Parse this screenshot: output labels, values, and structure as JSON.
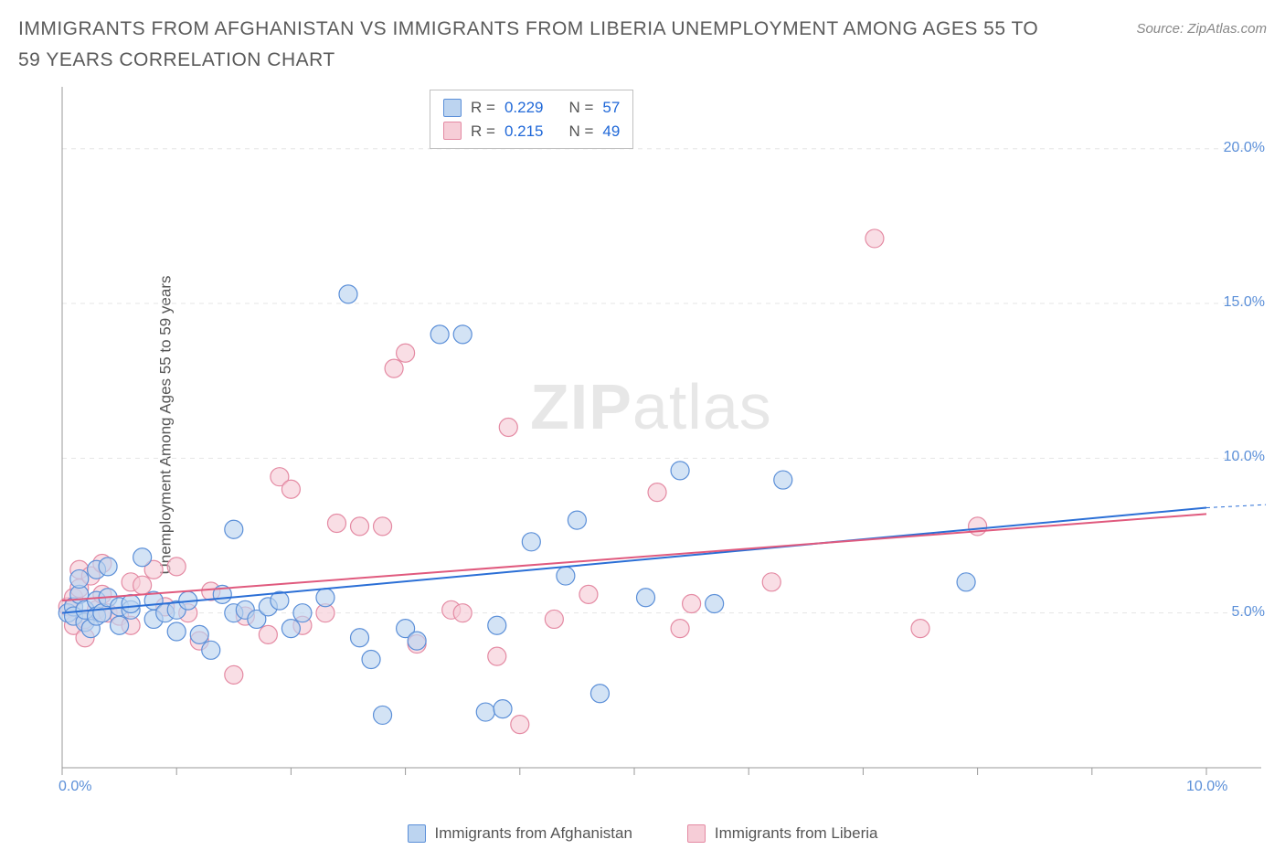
{
  "title": "IMMIGRANTS FROM AFGHANISTAN VS IMMIGRANTS FROM LIBERIA UNEMPLOYMENT AMONG AGES 55 TO 59 YEARS CORRELATION CHART",
  "source": "Source: ZipAtlas.com",
  "y_axis_label": "Unemployment Among Ages 55 to 59 years",
  "watermark_a": "ZIP",
  "watermark_b": "atlas",
  "chart": {
    "type": "scatter",
    "xlim": [
      0,
      10
    ],
    "ylim": [
      0,
      22
    ],
    "x_ticks": [
      0,
      1,
      2,
      3,
      4,
      5,
      6,
      7,
      8,
      9,
      10
    ],
    "x_tick_labels": {
      "0": "0.0%",
      "10": "10.0%"
    },
    "y_ticks": [
      5,
      10,
      15,
      20
    ],
    "y_tick_labels": {
      "5": "5.0%",
      "10": "10.0%",
      "15": "15.0%",
      "20": "20.0%"
    },
    "grid_color": "#e5e5e5",
    "axis_color": "#999999",
    "background": "#ffffff",
    "marker_radius": 10,
    "marker_stroke_width": 1.2,
    "line_width": 2,
    "series": [
      {
        "key": "afghanistan",
        "label": "Immigrants from Afghanistan",
        "fill": "#bcd4f0",
        "stroke": "#5b8fd8",
        "line_color": "#2b6fd6",
        "line": [
          [
            0,
            5.0
          ],
          [
            10,
            8.4
          ]
        ],
        "dash_extension": [
          [
            10,
            8.4
          ],
          [
            10.2,
            8.5
          ]
        ],
        "points": [
          [
            0.05,
            5.0
          ],
          [
            0.1,
            5.2
          ],
          [
            0.1,
            4.9
          ],
          [
            0.15,
            5.6
          ],
          [
            0.15,
            6.1
          ],
          [
            0.2,
            4.7
          ],
          [
            0.2,
            5.1
          ],
          [
            0.25,
            4.5
          ],
          [
            0.3,
            5.4
          ],
          [
            0.3,
            6.4
          ],
          [
            0.3,
            4.9
          ],
          [
            0.35,
            5.0
          ],
          [
            0.4,
            6.5
          ],
          [
            0.4,
            5.5
          ],
          [
            0.5,
            4.6
          ],
          [
            0.5,
            5.2
          ],
          [
            0.6,
            5.1
          ],
          [
            0.6,
            5.3
          ],
          [
            0.7,
            6.8
          ],
          [
            0.8,
            5.4
          ],
          [
            0.8,
            4.8
          ],
          [
            0.9,
            5.0
          ],
          [
            1.0,
            5.1
          ],
          [
            1.1,
            5.4
          ],
          [
            1.2,
            4.3
          ],
          [
            1.3,
            3.8
          ],
          [
            1.4,
            5.6
          ],
          [
            1.5,
            7.7
          ],
          [
            1.5,
            5.0
          ],
          [
            1.6,
            5.1
          ],
          [
            1.7,
            4.8
          ],
          [
            1.8,
            5.2
          ],
          [
            1.9,
            5.4
          ],
          [
            2.0,
            4.5
          ],
          [
            2.1,
            5.0
          ],
          [
            2.5,
            15.3
          ],
          [
            2.6,
            4.2
          ],
          [
            2.7,
            3.5
          ],
          [
            2.8,
            1.7
          ],
          [
            3.0,
            4.5
          ],
          [
            3.1,
            4.1
          ],
          [
            3.3,
            14.0
          ],
          [
            3.5,
            14.0
          ],
          [
            3.7,
            1.8
          ],
          [
            3.8,
            4.6
          ],
          [
            3.85,
            1.9
          ],
          [
            4.1,
            7.3
          ],
          [
            4.4,
            6.2
          ],
          [
            4.5,
            8.0
          ],
          [
            4.7,
            2.4
          ],
          [
            5.1,
            5.5
          ],
          [
            5.4,
            9.6
          ],
          [
            5.7,
            5.3
          ],
          [
            6.3,
            9.3
          ],
          [
            7.9,
            6.0
          ],
          [
            2.3,
            5.5
          ],
          [
            1.0,
            4.4
          ]
        ]
      },
      {
        "key": "liberia",
        "label": "Immigrants from Liberia",
        "fill": "#f6cdd7",
        "stroke": "#e48aa3",
        "line_color": "#e05a7e",
        "line": [
          [
            0,
            5.4
          ],
          [
            10,
            8.2
          ]
        ],
        "points": [
          [
            0.05,
            5.2
          ],
          [
            0.1,
            5.5
          ],
          [
            0.1,
            4.6
          ],
          [
            0.15,
            5.8
          ],
          [
            0.15,
            6.4
          ],
          [
            0.2,
            4.2
          ],
          [
            0.2,
            4.8
          ],
          [
            0.25,
            6.2
          ],
          [
            0.3,
            5.1
          ],
          [
            0.35,
            6.6
          ],
          [
            0.35,
            5.6
          ],
          [
            0.4,
            5.0
          ],
          [
            0.5,
            4.9
          ],
          [
            0.6,
            6.0
          ],
          [
            0.6,
            4.6
          ],
          [
            0.8,
            6.4
          ],
          [
            0.9,
            5.2
          ],
          [
            1.0,
            6.5
          ],
          [
            1.2,
            4.1
          ],
          [
            1.3,
            5.7
          ],
          [
            1.5,
            3.0
          ],
          [
            1.6,
            4.9
          ],
          [
            1.8,
            4.3
          ],
          [
            1.9,
            9.4
          ],
          [
            2.0,
            9.0
          ],
          [
            2.1,
            4.6
          ],
          [
            2.3,
            5.0
          ],
          [
            2.4,
            7.9
          ],
          [
            2.6,
            7.8
          ],
          [
            2.8,
            7.8
          ],
          [
            2.9,
            12.9
          ],
          [
            3.0,
            13.4
          ],
          [
            3.1,
            4.0
          ],
          [
            3.4,
            5.1
          ],
          [
            3.5,
            5.0
          ],
          [
            3.8,
            3.6
          ],
          [
            3.9,
            11.0
          ],
          [
            4.0,
            1.4
          ],
          [
            4.3,
            4.8
          ],
          [
            4.6,
            5.6
          ],
          [
            5.2,
            8.9
          ],
          [
            5.4,
            4.5
          ],
          [
            5.5,
            5.3
          ],
          [
            6.2,
            6.0
          ],
          [
            7.1,
            17.1
          ],
          [
            7.5,
            4.5
          ],
          [
            8.0,
            7.8
          ],
          [
            0.7,
            5.9
          ],
          [
            1.1,
            5.0
          ]
        ]
      }
    ]
  },
  "stats_box": {
    "rows": [
      {
        "swatch_fill": "#bcd4f0",
        "swatch_stroke": "#5b8fd8",
        "r_label": "R =",
        "r": "0.229",
        "n_label": "N =",
        "n": "57"
      },
      {
        "swatch_fill": "#f6cdd7",
        "swatch_stroke": "#e48aa3",
        "r_label": "R =",
        "r": "0.215",
        "n_label": "N =",
        "n": "49"
      }
    ]
  },
  "bottom_legend": [
    {
      "swatch_fill": "#bcd4f0",
      "swatch_stroke": "#5b8fd8",
      "label": "Immigrants from Afghanistan"
    },
    {
      "swatch_fill": "#f6cdd7",
      "swatch_stroke": "#e48aa3",
      "label": "Immigrants from Liberia"
    }
  ]
}
